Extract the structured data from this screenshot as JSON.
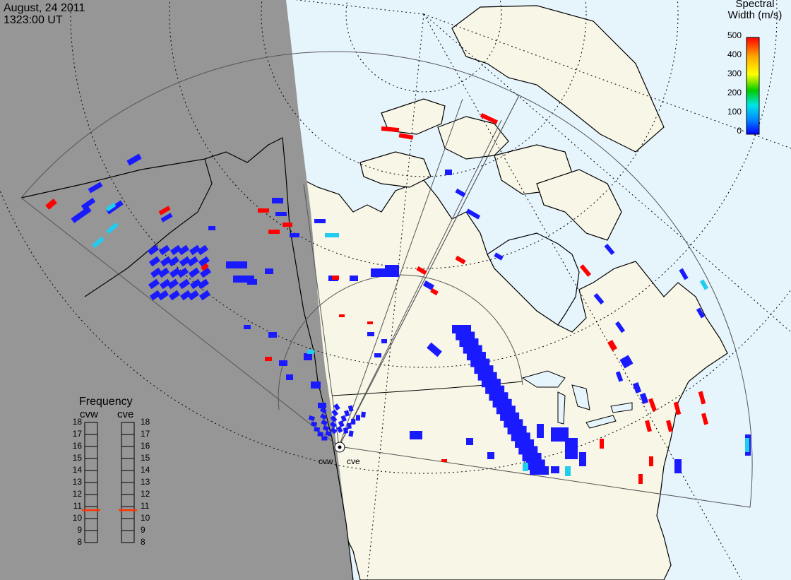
{
  "timestamp": {
    "date": "August, 24 2011",
    "time": "1323:00 UT"
  },
  "colorbar": {
    "title_line1": "Spectral",
    "title_line2": "Width (m/s)",
    "ticks": [
      "500",
      "400",
      "300",
      "200",
      "100",
      "0"
    ],
    "range": [
      0,
      500
    ],
    "colors": [
      "#0000ff",
      "#0088ff",
      "#00e6e6",
      "#00cc00",
      "#ffff00",
      "#ffaa00",
      "#ff0000"
    ]
  },
  "frequency": {
    "title": "Frequency",
    "radars": [
      "cvw",
      "cve"
    ],
    "scale": [
      "18",
      "17",
      "16",
      "15",
      "14",
      "13",
      "12",
      "11",
      "10",
      "9",
      "8"
    ],
    "cvw_mhz": 10.7,
    "cve_mhz": 10.7,
    "marker_color": "#ff3300"
  },
  "sites": {
    "west_label": "cvw",
    "east_label": "cve"
  },
  "colors": {
    "night": "#969696",
    "day_ocean": "#e6f4fc",
    "land": "#f8f6e6",
    "echo_low": "#1a1aff",
    "echo_high": "#ff0000",
    "echo_mid": "#22ccee"
  }
}
